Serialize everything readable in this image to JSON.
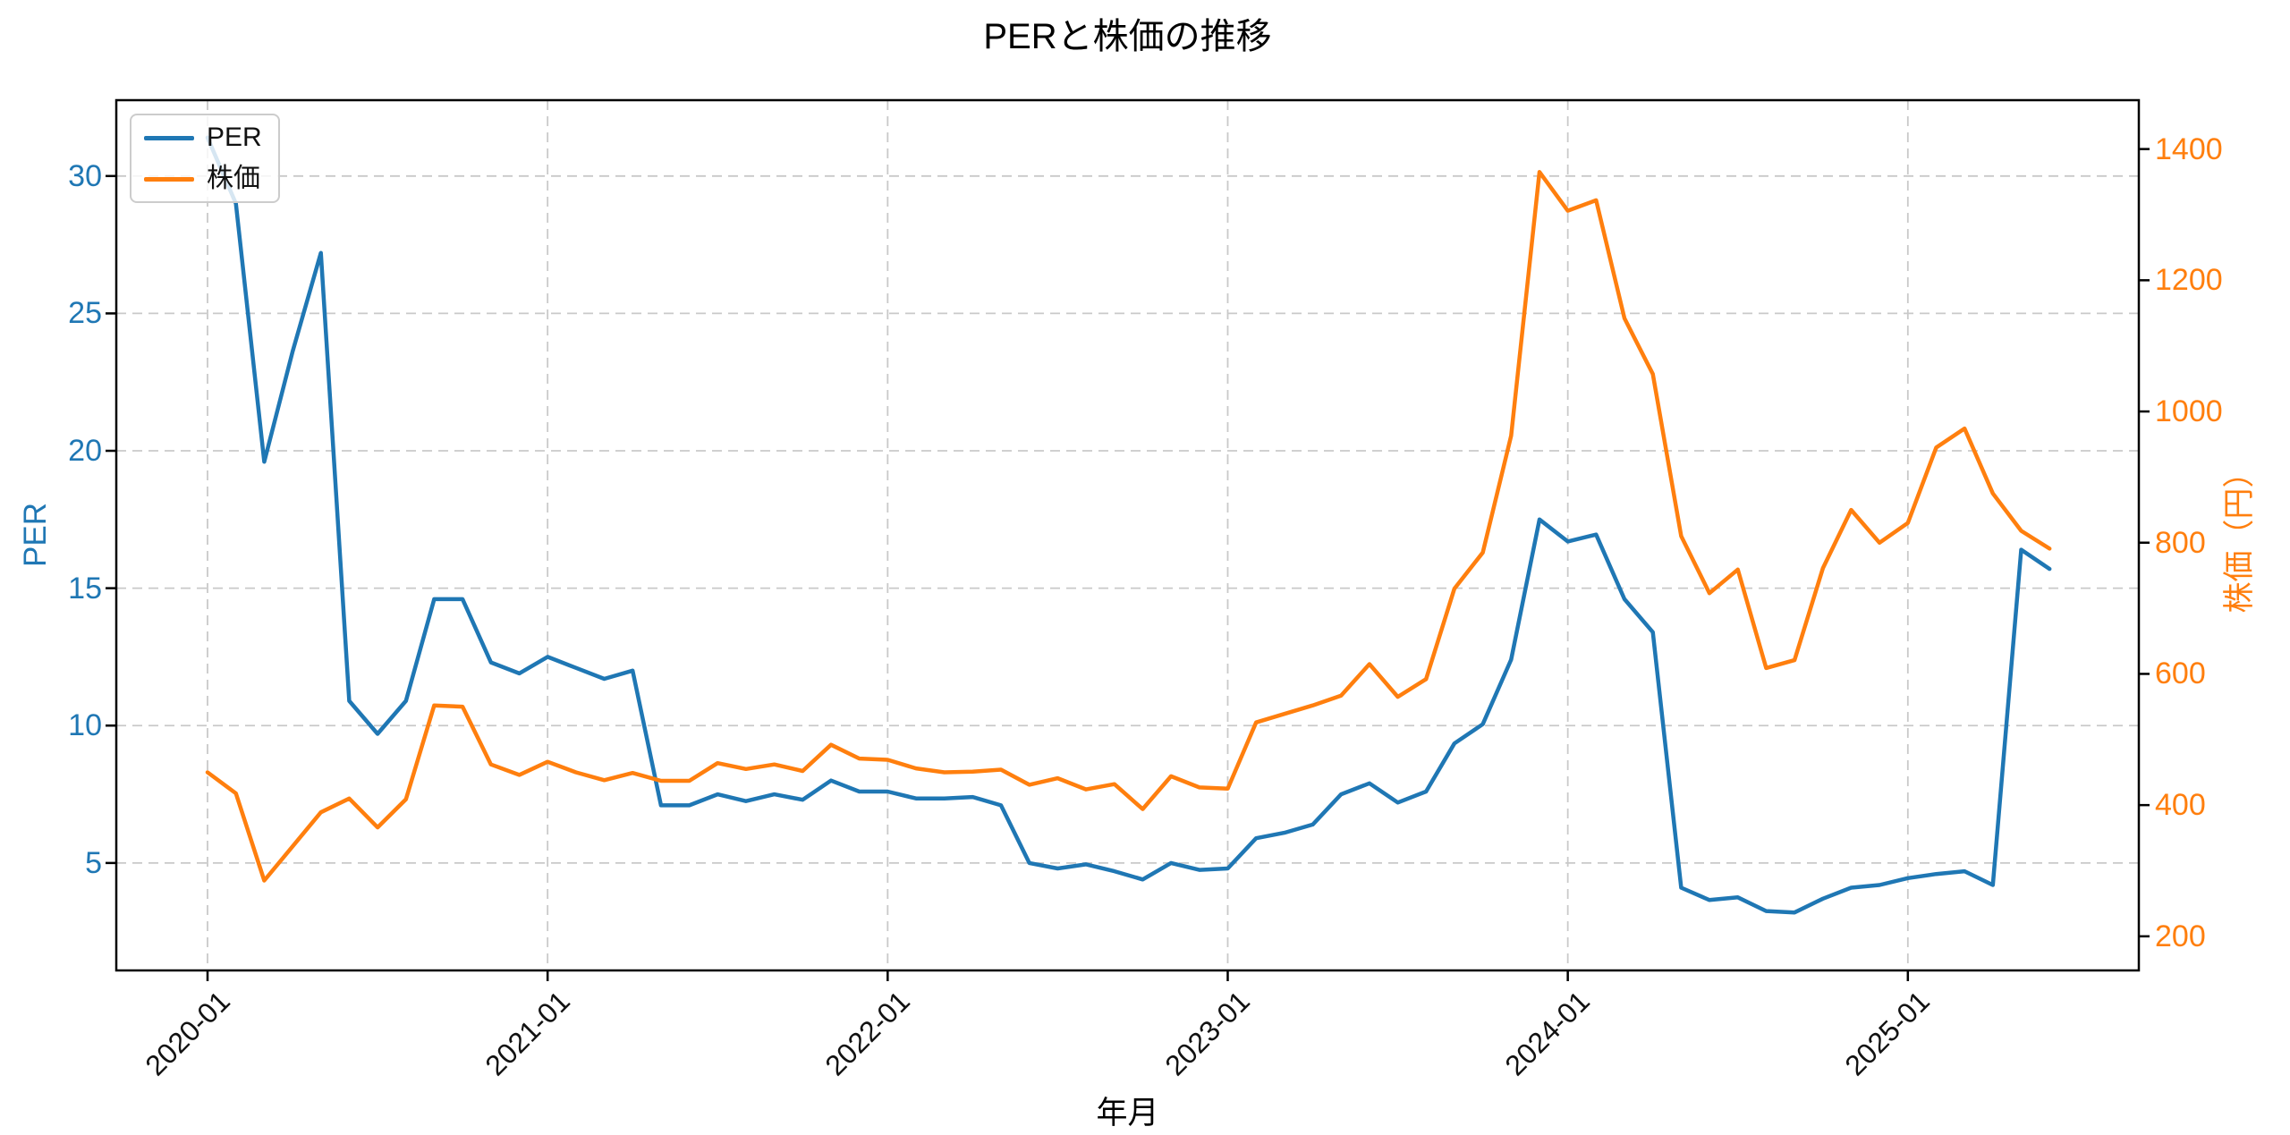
{
  "title": "PERと株価の推移",
  "axes": {
    "x_label": "年月",
    "y_left_label": "PER",
    "y_right_label": "株価（円）"
  },
  "legend": {
    "items": [
      {
        "label": "PER",
        "color": "#1f77b4"
      },
      {
        "label": "株価",
        "color": "#ff7f0e"
      }
    ]
  },
  "colors": {
    "per_line": "#1f77b4",
    "price_line": "#ff7f0e",
    "grid": "#c9c9c9",
    "spine": "#000000",
    "left_tick_labels": "#1f77b4",
    "right_tick_labels": "#ff7f0e",
    "x_tick_labels": "#111111"
  },
  "chart_data": {
    "type": "line",
    "title": "PERと株価の推移",
    "xlabel": "年月",
    "ylabel_left": "PER",
    "ylabel_right": "株価（円）",
    "grid": {
      "enabled": true,
      "style": "dashed"
    },
    "legend_position": "upper-left",
    "x": [
      "2020-01",
      "2020-02",
      "2020-03",
      "2020-04",
      "2020-05",
      "2020-06",
      "2020-07",
      "2020-08",
      "2020-09",
      "2020-10",
      "2020-11",
      "2020-12",
      "2021-01",
      "2021-02",
      "2021-03",
      "2021-04",
      "2021-05",
      "2021-06",
      "2021-07",
      "2021-08",
      "2021-09",
      "2021-10",
      "2021-11",
      "2021-12",
      "2022-01",
      "2022-02",
      "2022-03",
      "2022-04",
      "2022-05",
      "2022-06",
      "2022-07",
      "2022-08",
      "2022-09",
      "2022-10",
      "2022-11",
      "2022-12",
      "2023-01",
      "2023-02",
      "2023-03",
      "2023-04",
      "2023-05",
      "2023-06",
      "2023-07",
      "2023-08",
      "2023-09",
      "2023-10",
      "2023-11",
      "2023-12",
      "2024-01",
      "2024-02",
      "2024-03",
      "2024-04",
      "2024-05",
      "2024-06",
      "2024-07",
      "2024-08",
      "2024-09",
      "2024-10",
      "2024-11",
      "2024-12",
      "2025-01",
      "2025-02",
      "2025-03",
      "2025-04",
      "2025-05",
      "2025-06"
    ],
    "x_ticks": {
      "indices": [
        0,
        12,
        24,
        36,
        48,
        60
      ],
      "labels": [
        "2020-01",
        "2021-01",
        "2022-01",
        "2023-01",
        "2024-01",
        "2025-01"
      ]
    },
    "y_left_ticks": [
      5,
      10,
      15,
      20,
      25,
      30
    ],
    "y_right_ticks": [
      200,
      400,
      600,
      800,
      1000,
      1200,
      1400
    ],
    "xlim_index": [
      -3.22,
      68.15
    ],
    "ylim_left": [
      1.09,
      32.76
    ],
    "ylim_right": [
      148,
      1474.5
    ],
    "series": [
      {
        "name": "PER",
        "axis": "left",
        "color": "#1f77b4",
        "values": [
          31.4,
          29.0,
          19.6,
          23.6,
          27.2,
          10.9,
          9.7,
          10.9,
          14.6,
          14.6,
          12.3,
          11.9,
          12.5,
          12.1,
          11.7,
          12.0,
          7.1,
          7.1,
          7.5,
          7.25,
          7.5,
          7.3,
          8.0,
          7.6,
          7.6,
          7.35,
          7.35,
          7.4,
          7.1,
          5.0,
          4.8,
          4.95,
          4.7,
          4.4,
          5.0,
          4.75,
          4.8,
          5.9,
          6.1,
          6.4,
          7.5,
          7.9,
          7.2,
          7.6,
          9.35,
          10.05,
          12.4,
          17.5,
          16.7,
          16.95,
          14.6,
          13.4,
          4.1,
          3.65,
          3.75,
          3.25,
          3.2,
          3.7,
          4.1,
          4.2,
          4.45,
          4.6,
          4.7,
          4.2,
          16.4,
          15.7
        ]
      },
      {
        "name": "株価",
        "axis": "right",
        "color": "#ff7f0e",
        "values": [
          450,
          418,
          285,
          337,
          389,
          410,
          366,
          409,
          552,
          550,
          462,
          446,
          466,
          450,
          438,
          449,
          437,
          437,
          464,
          455,
          462,
          452,
          492,
          471,
          469,
          456,
          450,
          451,
          454,
          431,
          441,
          424,
          432,
          394,
          444,
          427,
          425,
          526,
          539,
          552,
          567,
          615,
          565,
          592,
          730,
          785,
          963,
          1365,
          1306,
          1322,
          1142,
          1057,
          810,
          723,
          759,
          609,
          621,
          761,
          850,
          800,
          830,
          945,
          974,
          875,
          818,
          791
        ]
      }
    ]
  }
}
